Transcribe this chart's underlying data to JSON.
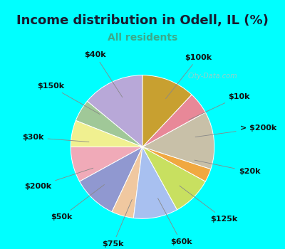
{
  "title": "Income distribution in Odell, IL (%)",
  "subtitle": "All residents",
  "bg_cyan": "#00FFFF",
  "bg_inner": "#e8f8f0",
  "subtitle_color": "#3aaa8a",
  "title_color": "#1a1a2e",
  "watermark": "City-Data.com",
  "labels": [
    "$100k",
    "$10k",
    "> $200k",
    "$20k",
    "$125k",
    "$60k",
    "$75k",
    "$50k",
    "$200k",
    "$30k",
    "$150k",
    "$40k"
  ],
  "sizes": [
    14,
    5,
    6,
    8,
    10,
    5,
    10,
    9,
    3,
    13,
    5,
    12
  ],
  "colors": [
    "#b8a8d8",
    "#a0c898",
    "#f0f090",
    "#f0aab8",
    "#9098d0",
    "#f0c8a0",
    "#a8c0f0",
    "#c8e060",
    "#f0a840",
    "#c8c0a8",
    "#e88898",
    "#c8a030"
  ],
  "startangle": 90,
  "title_fontsize": 13,
  "subtitle_fontsize": 10,
  "label_fontsize": 8
}
